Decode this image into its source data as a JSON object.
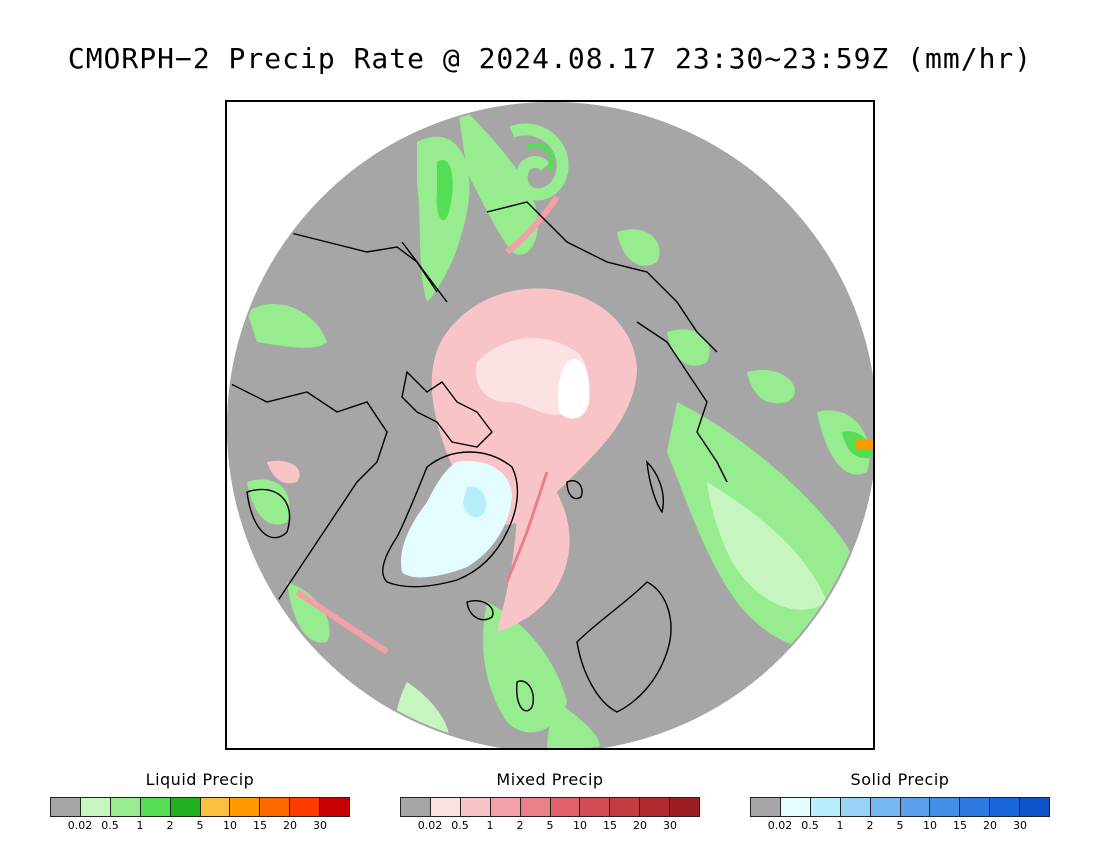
{
  "title": "CMORPH−2 Precip Rate @ 2024.08.17 23:30~23:59Z (mm/hr)",
  "map": {
    "projection": "north-polar-stereographic",
    "no_data_color": "#ffffff",
    "zero_precip_color": "#a6a6a6",
    "coastline_color": "#000000"
  },
  "legends": [
    {
      "id": "liquid",
      "title": "Liquid Precip",
      "colors": [
        "#a6a6a6",
        "#c6f5c0",
        "#96ec8e",
        "#55dd55",
        "#20b020",
        "#fcc040",
        "#ff9a00",
        "#ff6a00",
        "#ff3c00",
        "#c80000"
      ],
      "ticks": [
        "0.02",
        "0.5",
        "1",
        "2",
        "5",
        "10",
        "15",
        "20",
        "30"
      ]
    },
    {
      "id": "mixed",
      "title": "Mixed Precip",
      "colors": [
        "#a6a6a6",
        "#fde2e4",
        "#f8c4c8",
        "#f3a0a8",
        "#e98087",
        "#df6069",
        "#d24c54",
        "#c23c42",
        "#b02a30",
        "#9c1e22"
      ],
      "ticks": [
        "0.02",
        "0.5",
        "1",
        "2",
        "5",
        "10",
        "15",
        "20",
        "30"
      ]
    },
    {
      "id": "solid",
      "title": "Solid Precip",
      "colors": [
        "#a6a6a6",
        "#e2fcff",
        "#b6eefc",
        "#98d2f6",
        "#78b8f0",
        "#5aa0ea",
        "#448ee6",
        "#2e7ae2",
        "#1a66dc",
        "#0c52c8"
      ],
      "ticks": [
        "0.02",
        "0.5",
        "1",
        "2",
        "5",
        "10",
        "15",
        "20",
        "30"
      ]
    }
  ]
}
